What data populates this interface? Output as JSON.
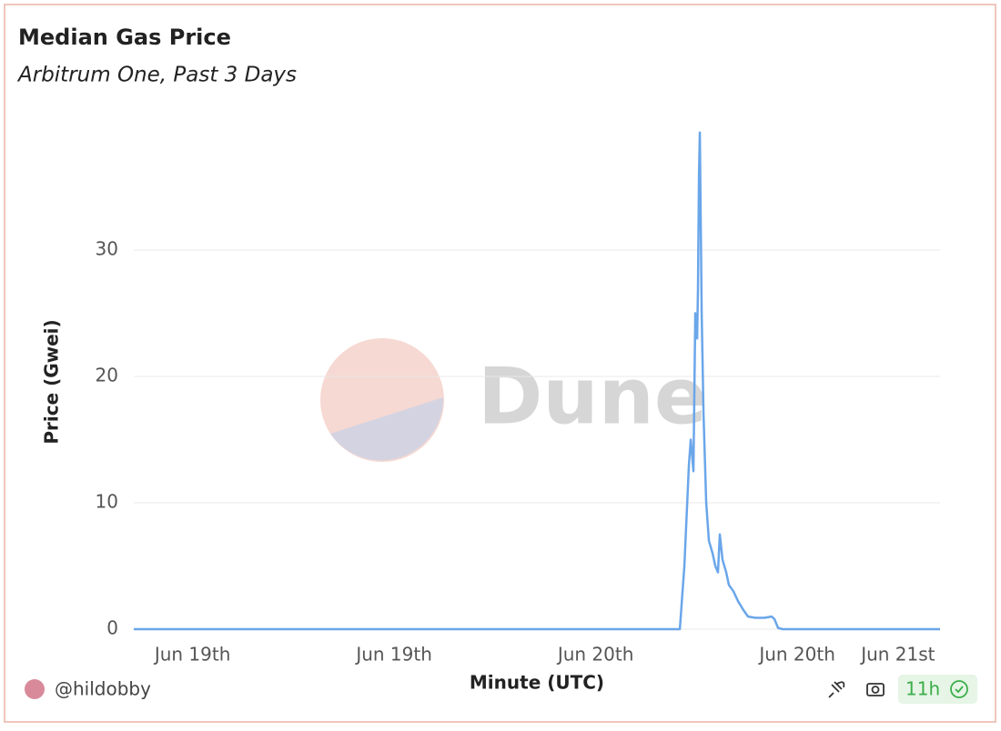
{
  "chart_data": {
    "type": "line",
    "title": "Median Gas Price",
    "subtitle": "Arbitrum One, Past 3 Days",
    "xlabel": "Minute (UTC)",
    "ylabel": "Price (Gwei)",
    "watermark": "Dune",
    "x": [
      0,
      32.51,
      32.78,
      33.05,
      33.16,
      33.32,
      33.43,
      33.54,
      33.59,
      33.65,
      33.7,
      33.81,
      33.92,
      34.08,
      34.24,
      34.46,
      34.62,
      34.78,
      34.89,
      35.05,
      35.27,
      35.43,
      35.7,
      35.98,
      36.3,
      36.57,
      37.0,
      37.55,
      37.98,
      38.14,
      38.36,
      38.63,
      48
    ],
    "values": [
      0,
      0,
      5,
      13,
      15,
      12.5,
      25,
      23,
      27,
      36,
      39.3,
      25,
      17,
      10,
      7,
      6,
      5,
      4.5,
      7.5,
      5.5,
      4.5,
      3.5,
      3,
      2.2,
      1.5,
      1.0,
      0.9,
      0.9,
      1.0,
      0.8,
      0.1,
      0,
      0
    ],
    "color": "#6aa6ea",
    "xlim": [
      0,
      48
    ],
    "xticks": [
      {
        "value": 3.5,
        "label": "Jun 19th"
      },
      {
        "value": 15.5,
        "label": "Jun 19th"
      },
      {
        "value": 27.5,
        "label": "Jun 20th"
      },
      {
        "value": 39.5,
        "label": "Jun 20th"
      },
      {
        "value": 45.5,
        "label": "Jun 21st"
      }
    ],
    "ylim": [
      0,
      40
    ],
    "yticks": [
      0,
      10,
      20,
      30
    ],
    "grid": true
  },
  "footer": {
    "author": "@hildobby",
    "freshness": "11h"
  }
}
